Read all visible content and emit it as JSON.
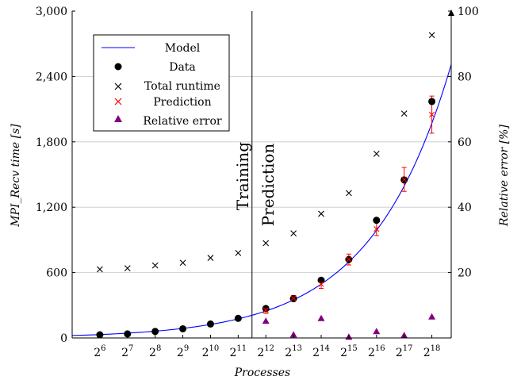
{
  "chart_data": {
    "type": "scatter",
    "xlabel": "Processes",
    "ylabel": "MPI_Recv time [s]",
    "y2label": "Relative error [%]",
    "x_exponents": [
      6,
      7,
      8,
      9,
      10,
      11,
      12,
      13,
      14,
      15,
      16,
      17,
      18
    ],
    "x_tick_base": "2",
    "xlim_exponent": [
      5,
      18.7
    ],
    "ylim": [
      0,
      3000
    ],
    "y_ticks": [
      "0",
      "600",
      "1,200",
      "1,800",
      "2,400",
      "3,000"
    ],
    "y_tick_values": [
      0,
      600,
      1200,
      1800,
      2400,
      3000
    ],
    "y2lim": [
      0,
      100
    ],
    "y2_ticks": [
      "20",
      "40",
      "60",
      "80",
      "100"
    ],
    "y2_tick_values": [
      20,
      40,
      60,
      80,
      100
    ],
    "grid": "horizontal",
    "divider_exponent": 11.5,
    "phase_labels": {
      "left": "Training",
      "right": "Prediction"
    },
    "legend_position": "top-left",
    "colors": {
      "model": "#0000ff",
      "data": "#000000",
      "total": "#000000",
      "prediction": "#ff0000",
      "error": "#800080"
    },
    "series": [
      {
        "name": "Model",
        "kind": "line",
        "curve": "exponential",
        "values_at_exponent": {
          "5": 22,
          "18.7": 2510
        }
      },
      {
        "name": "Data",
        "kind": "points",
        "x": [
          6,
          7,
          8,
          9,
          10,
          11,
          12,
          13,
          14,
          15,
          16,
          17,
          18
        ],
        "values": [
          29,
          37,
          60,
          84,
          128,
          180,
          270,
          360,
          530,
          720,
          1080,
          1450,
          2170
        ]
      },
      {
        "name": "Total runtime",
        "kind": "points",
        "x": [
          6,
          7,
          8,
          9,
          10,
          11,
          12,
          13,
          14,
          15,
          16,
          17,
          18
        ],
        "values": [
          630,
          640,
          665,
          690,
          735,
          780,
          870,
          960,
          1140,
          1330,
          1690,
          2060,
          2780
        ]
      },
      {
        "name": "Prediction",
        "kind": "points_with_error",
        "x": [
          12,
          13,
          14,
          15,
          16,
          17,
          18
        ],
        "values": [
          255,
          365,
          495,
          720,
          1000,
          1455,
          2050
        ],
        "error_low": [
          225,
          340,
          455,
          670,
          940,
          1345,
          1880
        ],
        "error_high": [
          285,
          390,
          535,
          770,
          1060,
          1565,
          2220
        ]
      },
      {
        "name": "Relative error",
        "kind": "points",
        "axis": "y2",
        "x": [
          12,
          13,
          14,
          15,
          16,
          17,
          18
        ],
        "values": [
          5.2,
          1.0,
          6.0,
          0.3,
          2.0,
          0.8,
          6.5
        ]
      }
    ]
  }
}
